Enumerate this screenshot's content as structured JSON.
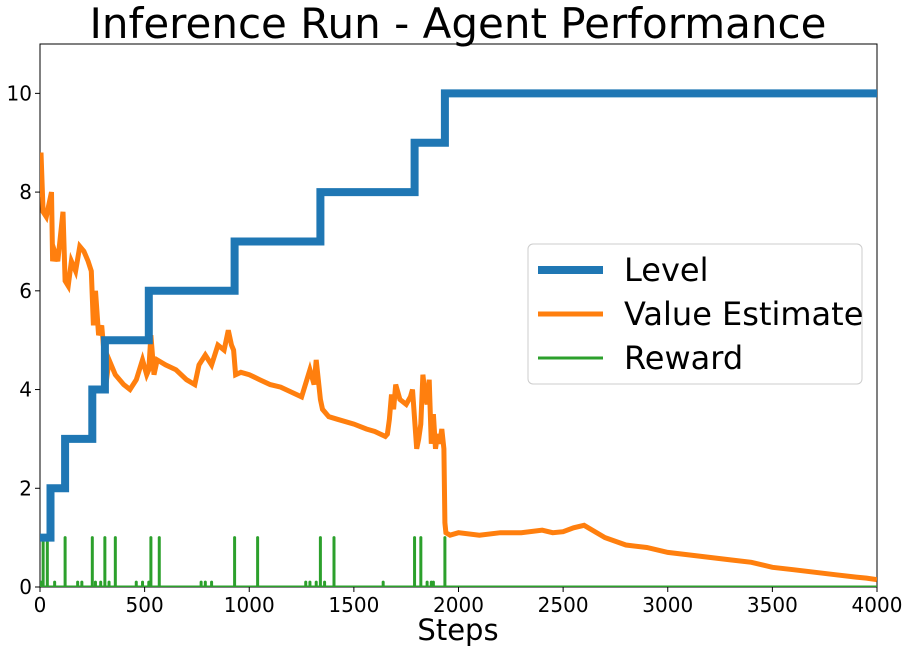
{
  "chart_data": {
    "type": "line",
    "title": "Inference Run - Agent Performance",
    "xlabel": "Steps",
    "ylabel": "",
    "xlim": [
      0,
      4000
    ],
    "ylim": [
      0,
      11
    ],
    "x_ticks": [
      0,
      500,
      1000,
      1500,
      2000,
      2500,
      3000,
      3500,
      4000
    ],
    "y_ticks": [
      0,
      2,
      4,
      6,
      8,
      10
    ],
    "grid": false,
    "legend": {
      "position": "center-right"
    },
    "series": [
      {
        "name": "Level",
        "color": "#1f77b4",
        "style": "step",
        "x": [
          0,
          50,
          50,
          120,
          120,
          250,
          250,
          310,
          310,
          520,
          520,
          930,
          930,
          1340,
          1340,
          1790,
          1790,
          1935,
          1935,
          4000
        ],
        "y": [
          1,
          1,
          2,
          2,
          3,
          3,
          4,
          4,
          5,
          5,
          6,
          6,
          7,
          7,
          8,
          8,
          9,
          9,
          10,
          10
        ]
      },
      {
        "name": "Value Estimate",
        "color": "#ff7f0e",
        "style": "line",
        "x": [
          0,
          5,
          15,
          30,
          45,
          55,
          60,
          70,
          85,
          100,
          110,
          120,
          135,
          150,
          170,
          190,
          210,
          230,
          245,
          255,
          265,
          280,
          295,
          305,
          315,
          330,
          360,
          400,
          430,
          460,
          490,
          510,
          520,
          530,
          545,
          560,
          600,
          650,
          700,
          740,
          760,
          790,
          820,
          850,
          880,
          900,
          915,
          925,
          935,
          960,
          1000,
          1050,
          1100,
          1150,
          1200,
          1250,
          1290,
          1310,
          1320,
          1330,
          1340,
          1350,
          1380,
          1420,
          1500,
          1560,
          1600,
          1650,
          1660,
          1670,
          1680,
          1690,
          1700,
          1720,
          1750,
          1770,
          1780,
          1790,
          1800,
          1810,
          1820,
          1830,
          1840,
          1850,
          1860,
          1870,
          1880,
          1890,
          1900,
          1910,
          1920,
          1930,
          1935,
          1940,
          1960,
          2000,
          2100,
          2200,
          2300,
          2400,
          2450,
          2500,
          2550,
          2600,
          2700,
          2800,
          2900,
          3000,
          3100,
          3200,
          3300,
          3400,
          3500,
          3600,
          3700,
          3800,
          3900,
          3950,
          4000
        ],
        "y": [
          7.9,
          8.8,
          7.6,
          7.5,
          7.8,
          8.0,
          6.6,
          6.8,
          6.6,
          7.2,
          7.6,
          6.2,
          6.1,
          6.6,
          6.4,
          6.9,
          6.8,
          6.6,
          6.4,
          5.3,
          6.0,
          5.1,
          5.3,
          4.8,
          4.1,
          4.6,
          4.3,
          4.1,
          4.0,
          4.2,
          4.6,
          4.3,
          4.4,
          5.1,
          4.3,
          4.6,
          4.5,
          4.4,
          4.2,
          4.1,
          4.5,
          4.7,
          4.5,
          4.9,
          4.8,
          5.2,
          4.9,
          4.8,
          4.3,
          4.35,
          4.3,
          4.2,
          4.1,
          4.05,
          3.95,
          3.85,
          4.4,
          4.1,
          4.6,
          4.2,
          3.8,
          3.6,
          3.45,
          3.4,
          3.3,
          3.2,
          3.15,
          3.05,
          3.1,
          3.4,
          3.9,
          3.6,
          4.1,
          3.8,
          3.7,
          3.85,
          4.0,
          3.4,
          2.8,
          3.0,
          3.3,
          4.3,
          3.9,
          3.7,
          4.2,
          2.9,
          3.5,
          2.8,
          3.1,
          2.9,
          3.2,
          2.8,
          1.3,
          1.1,
          1.05,
          1.1,
          1.05,
          1.1,
          1.1,
          1.15,
          1.1,
          1.12,
          1.2,
          1.25,
          1.0,
          0.85,
          0.8,
          0.7,
          0.65,
          0.6,
          0.55,
          0.5,
          0.4,
          0.35,
          0.3,
          0.25,
          0.2,
          0.18,
          0.15
        ]
      },
      {
        "name": "Reward",
        "color": "#2ca02c",
        "style": "spikes",
        "baseline": 0,
        "spikes": [
          [
            5,
            0.1
          ],
          [
            15,
            1
          ],
          [
            35,
            1
          ],
          [
            70,
            0.1
          ],
          [
            120,
            1
          ],
          [
            180,
            0.1
          ],
          [
            200,
            0.1
          ],
          [
            250,
            1
          ],
          [
            265,
            0.1
          ],
          [
            290,
            0.1
          ],
          [
            310,
            1
          ],
          [
            330,
            0.1
          ],
          [
            360,
            1
          ],
          [
            460,
            0.1
          ],
          [
            490,
            0.1
          ],
          [
            520,
            0.1
          ],
          [
            530,
            1
          ],
          [
            570,
            1
          ],
          [
            770,
            0.1
          ],
          [
            790,
            0.1
          ],
          [
            820,
            0.1
          ],
          [
            930,
            1
          ],
          [
            1040,
            1
          ],
          [
            1270,
            0.1
          ],
          [
            1290,
            0.1
          ],
          [
            1320,
            0.1
          ],
          [
            1340,
            1
          ],
          [
            1360,
            0.1
          ],
          [
            1405,
            1
          ],
          [
            1640,
            0.1
          ],
          [
            1790,
            1
          ],
          [
            1820,
            1
          ],
          [
            1850,
            0.1
          ],
          [
            1870,
            0.1
          ],
          [
            1880,
            0.1
          ],
          [
            1935,
            1
          ]
        ]
      }
    ]
  }
}
